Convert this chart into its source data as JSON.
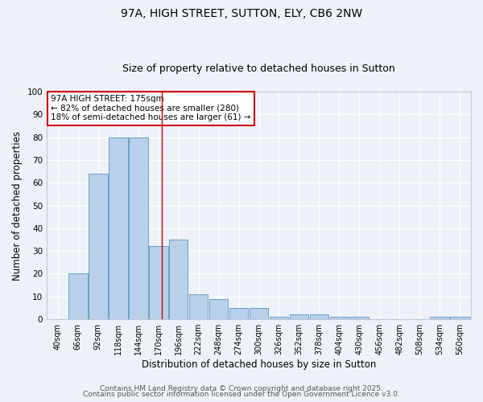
{
  "title1": "97A, HIGH STREET, SUTTON, ELY, CB6 2NW",
  "title2": "Size of property relative to detached houses in Sutton",
  "xlabel": "Distribution of detached houses by size in Sutton",
  "ylabel": "Number of detached properties",
  "bins": [
    "40sqm",
    "66sqm",
    "92sqm",
    "118sqm",
    "144sqm",
    "170sqm",
    "196sqm",
    "222sqm",
    "248sqm",
    "274sqm",
    "300sqm",
    "326sqm",
    "352sqm",
    "378sqm",
    "404sqm",
    "430sqm",
    "456sqm",
    "482sqm",
    "508sqm",
    "534sqm",
    "560sqm"
  ],
  "values": [
    0,
    20,
    64,
    80,
    80,
    32,
    35,
    11,
    9,
    5,
    5,
    1,
    2,
    2,
    1,
    1,
    0,
    0,
    0,
    1,
    1
  ],
  "bar_color": "#b8d0ea",
  "bar_edge_color": "#6b9fc8",
  "red_line_color": "#cc0000",
  "annotation_text": "97A HIGH STREET: 175sqm\n← 82% of detached houses are smaller (280)\n18% of semi-detached houses are larger (61) →",
  "annotation_box_color": "white",
  "annotation_box_edge_color": "#cc0000",
  "ylim": [
    0,
    100
  ],
  "yticks": [
    0,
    10,
    20,
    30,
    40,
    50,
    60,
    70,
    80,
    90,
    100
  ],
  "footer1": "Contains HM Land Registry data © Crown copyright and database right 2025.",
  "footer2": "Contains public sector information licensed under the Open Government Licence v3.0.",
  "bg_color": "#eef2f8",
  "grid_color": "#ffffff",
  "title_fontsize": 10,
  "subtitle_fontsize": 9,
  "axis_label_fontsize": 8.5,
  "tick_fontsize": 7,
  "annotation_fontsize": 7.5,
  "footer_fontsize": 6.5
}
